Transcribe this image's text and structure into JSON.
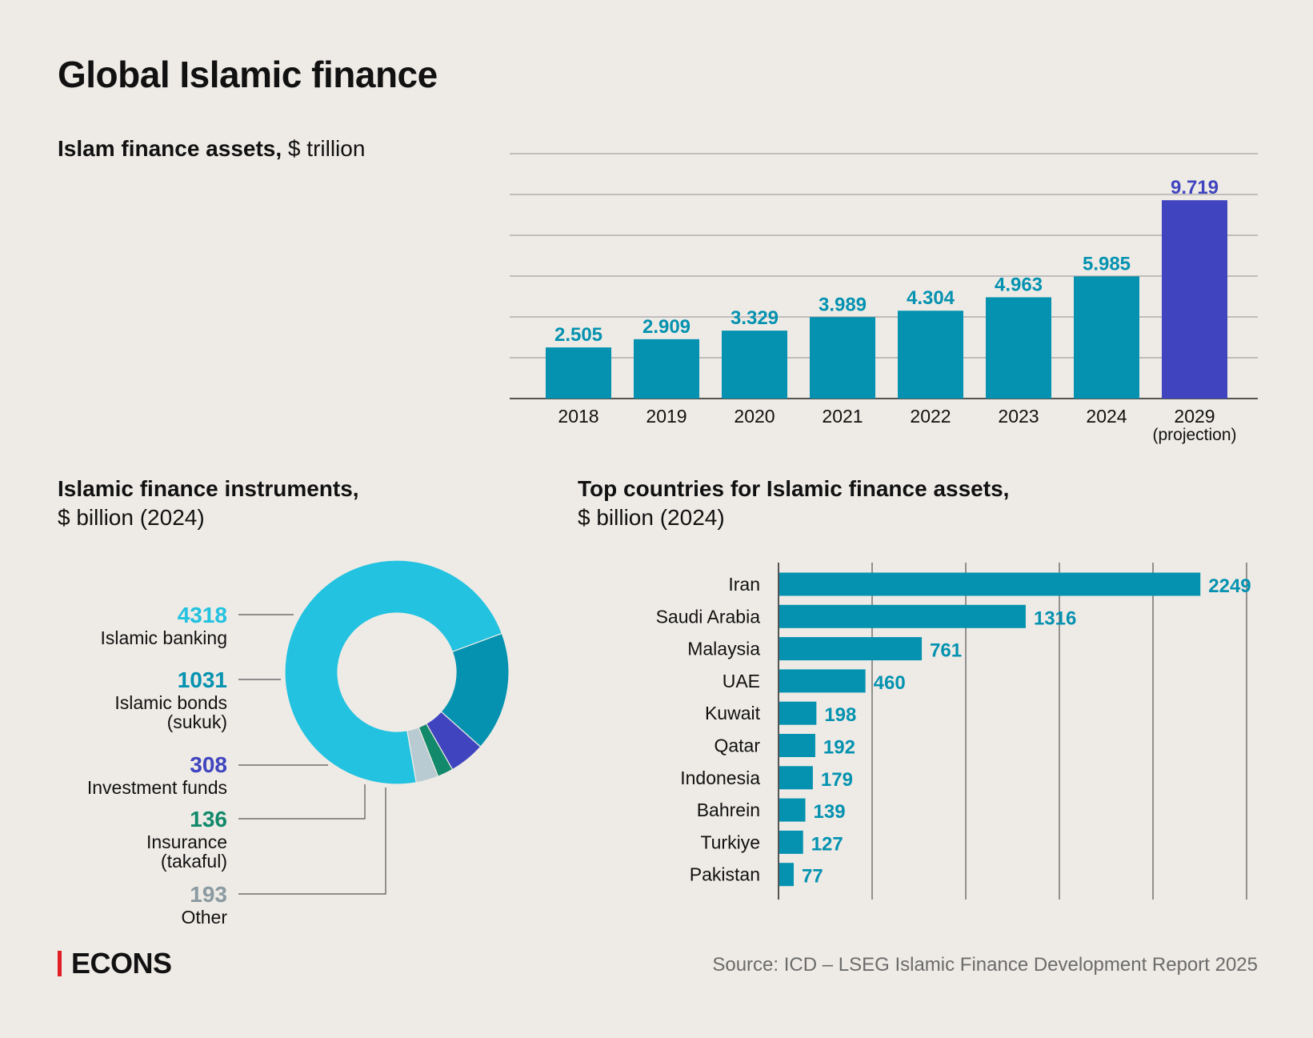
{
  "title": "Global Islamic finance",
  "colors": {
    "teal": "#0492b0",
    "projection": "#4044bf",
    "banking": "#22c2e0",
    "bonds": "#0492b0",
    "funds": "#4044bf",
    "insurance": "#12896b",
    "other": "#b9cbd2",
    "grid": "#999999",
    "brand_red": "#e11e26"
  },
  "brand": {
    "name": "ECONS"
  },
  "source": "Source: ICD – LSEG Islamic Finance Development Report 2025",
  "chart_data": [
    {
      "type": "bar",
      "title_bold": "Islam finance assets,",
      "title_rest": " $ trillion",
      "categories": [
        "2018",
        "2019",
        "2020",
        "2021",
        "2022",
        "2023",
        "2024",
        "2029"
      ],
      "category_sublabels": [
        "",
        "",
        "",
        "",
        "",
        "",
        "",
        "(projection)"
      ],
      "values": [
        2.505,
        2.909,
        3.329,
        3.989,
        4.304,
        4.963,
        5.985,
        9.719
      ],
      "value_labels": [
        "2.505",
        "2.909",
        "3.329",
        "3.989",
        "4.304",
        "4.963",
        "5.985",
        "9.719"
      ],
      "projected": [
        false,
        false,
        false,
        false,
        false,
        false,
        false,
        true
      ],
      "ylim": [
        0,
        12
      ],
      "grid": true
    },
    {
      "type": "pie",
      "title_bold": "Islamic finance instruments,",
      "title_rest": "$ billion (2024)",
      "slices": [
        {
          "label": "Islamic banking",
          "value": 4318,
          "value_label": "4318",
          "color": "#22c2e0"
        },
        {
          "label": "Islamic bonds (sukuk)",
          "value": 1031,
          "value_label": "1031",
          "color": "#0492b0",
          "label_lines": [
            "Islamic bonds",
            "(sukuk)"
          ]
        },
        {
          "label": "Investment funds",
          "value": 308,
          "value_label": "308",
          "color": "#4044bf"
        },
        {
          "label": "Insurance (takaful)",
          "value": 136,
          "value_label": "136",
          "color": "#12896b",
          "label_lines": [
            "Insurance",
            "(takaful)"
          ]
        },
        {
          "label": "Other",
          "value": 193,
          "value_label": "193",
          "color": "#b9cbd2",
          "value_color": "#8a9aa1"
        }
      ]
    },
    {
      "type": "bar",
      "orientation": "horizontal",
      "title_bold": "Top countries for Islamic finance assets,",
      "title_rest": "$ billion (2024)",
      "categories": [
        "Iran",
        "Saudi Arabia",
        "Malaysia",
        "UAE",
        "Kuwait",
        "Qatar",
        "Indonesia",
        "Bahrein",
        "Turkiye",
        "Pakistan"
      ],
      "values": [
        2249,
        1316,
        761,
        460,
        198,
        192,
        179,
        139,
        127,
        77
      ],
      "value_labels": [
        "2249",
        "1316",
        "761",
        "460",
        "198",
        "192",
        "179",
        "139",
        "127",
        "77"
      ],
      "xlim": [
        0,
        2500
      ],
      "grid": true
    }
  ]
}
